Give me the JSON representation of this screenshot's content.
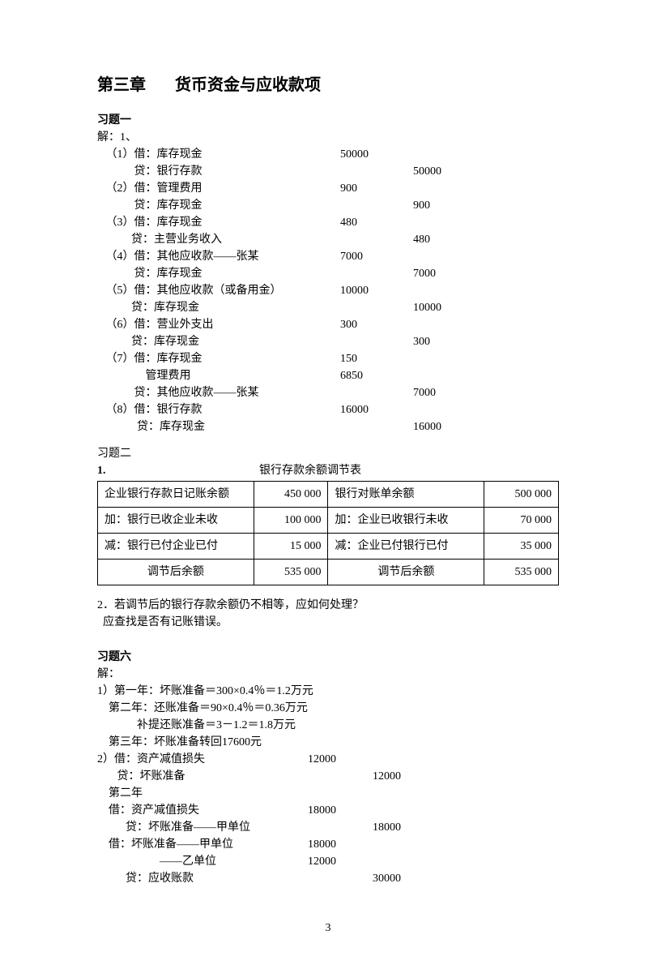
{
  "chapter": {
    "prefix": "第三章",
    "title": "货币资金与应收款项"
  },
  "ex1": {
    "title": "习题一",
    "sub": "解：1、",
    "entries": [
      {
        "label": "（1）借：库存现金",
        "debit": "50000",
        "credit": ""
      },
      {
        "label": "          贷：银行存款",
        "debit": "",
        "credit": "50000"
      },
      {
        "label": "（2）借：管理费用",
        "debit": "  900",
        "credit": ""
      },
      {
        "label": "          贷：库存现金",
        "debit": "",
        "credit": "  900"
      },
      {
        "label": "（3）借：库存现金",
        "debit": "   480",
        "credit": ""
      },
      {
        "label": "         贷：主营业务收入",
        "debit": "",
        "credit": "  480"
      },
      {
        "label": "（4）借：其他应收款——张某",
        "debit": "7000",
        "credit": ""
      },
      {
        "label": "          贷：库存现金",
        "debit": "",
        "credit": "7000"
      },
      {
        "label": "（5）借：其他应收款（或备用金）",
        "debit": "10000",
        "credit": ""
      },
      {
        "label": "         贷：库存现金",
        "debit": "",
        "credit": "10000"
      },
      {
        "label": "（6）借：营业外支出",
        "debit": "300",
        "credit": ""
      },
      {
        "label": "         贷：库存现金",
        "debit": "",
        "credit": "300"
      },
      {
        "label": "（7）借：库存现金",
        "debit": "  150",
        "credit": ""
      },
      {
        "label": "              管理费用",
        "debit": "6850",
        "credit": ""
      },
      {
        "label": "          贷：其他应收款——张某",
        "debit": "",
        "credit": "7000"
      },
      {
        "label": "（8）借：银行存款",
        "debit": "16000",
        "credit": ""
      },
      {
        "label": "           贷：库存现金",
        "debit": "",
        "credit": "16000"
      }
    ]
  },
  "ex2": {
    "title": "习题二",
    "num": "1.",
    "caption": "银行存款余额调节表",
    "rows": [
      [
        "企业银行存款日记账余额",
        "450 000",
        "银行对账单余额",
        "500 000"
      ],
      [
        "加：银行已收企业未收",
        "100 000",
        "加：企业已收银行未收",
        "70 000"
      ],
      [
        "减：银行已付企业已付",
        "15 000",
        "减：企业已付银行已付",
        "35 000"
      ],
      [
        "调节后余额",
        "535 000",
        "调节后余额",
        "535 000"
      ]
    ],
    "q2": "2．若调节后的银行存款余额仍不相等，应如何处理？",
    "a2": "  应查找是否有记账错误。"
  },
  "ex6": {
    "title": "习题六",
    "sub": "解：",
    "lines": [
      "1）第一年：坏账准备＝300×0.4％＝1.2万元",
      "    第二年：还账准备＝90×0.4％＝0.36万元",
      "              补提还账准备＝3－1.2＝1.8万元",
      "    第三年：坏账准备转回17600元"
    ],
    "entries": [
      {
        "label": "2）借：资产减值损失",
        "debit": "12000",
        "credit": ""
      },
      {
        "label": "       贷：坏账准备",
        "debit": "",
        "credit": "12000"
      },
      {
        "label": "    第二年",
        "debit": "",
        "credit": ""
      },
      {
        "label": "    借：资产减值损失",
        "debit": "18000",
        "credit": ""
      },
      {
        "label": "          贷：坏账准备——甲单位",
        "debit": "",
        "credit": "18000"
      },
      {
        "label": "    借：坏账准备——甲单位",
        "debit": "18000",
        "credit": ""
      },
      {
        "label": "                      ——乙单位",
        "debit": "12000",
        "credit": ""
      },
      {
        "label": "          贷：应收账款",
        "debit": "",
        "credit": "30000"
      }
    ]
  },
  "pagenum": "3"
}
